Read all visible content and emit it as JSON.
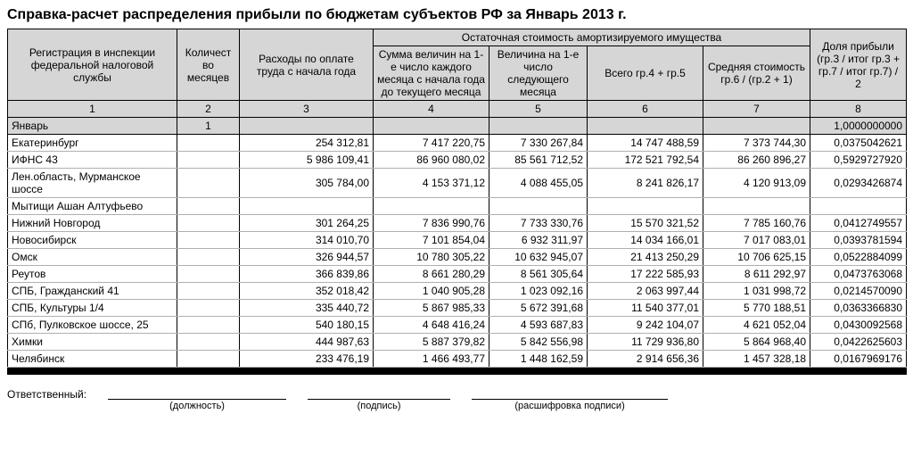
{
  "title": "Справка-расчет распределения прибыли по бюджетам субъектов РФ за Январь 2013 г.",
  "headers": {
    "c1": "Регистрация в инспекции федеральной налоговой службы",
    "c2": "Количест во месяцев",
    "c3": "Расходы по оплате труда с начала года",
    "group": "Остаточная стоимость амортизируемого имущества",
    "c4": "Сумма величин на 1-е число каждого  месяца с начала года до текущего месяца",
    "c5": "Величина на 1-е число следующего месяца",
    "c6": "Всего гр.4 + гр.5",
    "c7": "Средняя стоимость гр.6 / (гр.2 + 1)",
    "c8": "Доля прибыли (гр.3 / итог гр.3 + гр.7 / итог гр.7) / 2"
  },
  "colnums": [
    "1",
    "2",
    "3",
    "4",
    "5",
    "6",
    "7",
    "8"
  ],
  "month": {
    "label": "Январь",
    "count": "1",
    "share": "1,0000000000"
  },
  "rows": [
    {
      "c1": "Екатеринбург",
      "c3": "254 312,81",
      "c4": "7 417 220,75",
      "c5": "7 330 267,84",
      "c6": "14 747 488,59",
      "c7": "7 373 744,30",
      "c8": "0,0375042621"
    },
    {
      "c1": "ИФНС 43",
      "c3": "5 986 109,41",
      "c4": "86 960 080,02",
      "c5": "85 561 712,52",
      "c6": "172 521 792,54",
      "c7": "86 260 896,27",
      "c8": "0,5929727920"
    },
    {
      "c1": "Лен.область, Мурманское шоссе",
      "c3": "305 784,00",
      "c4": "4 153 371,12",
      "c5": "4 088 455,05",
      "c6": "8 241 826,17",
      "c7": "4 120 913,09",
      "c8": "0,0293426874"
    },
    {
      "c1": "Мытищи Ашан Алтуфьево",
      "c3": "",
      "c4": "",
      "c5": "",
      "c6": "",
      "c7": "",
      "c8": ""
    },
    {
      "c1": "Нижний Новгород",
      "c3": "301 264,25",
      "c4": "7 836 990,76",
      "c5": "7 733 330,76",
      "c6": "15 570 321,52",
      "c7": "7 785 160,76",
      "c8": "0,0412749557"
    },
    {
      "c1": "Новосибирск",
      "c3": "314 010,70",
      "c4": "7 101 854,04",
      "c5": "6 932 311,97",
      "c6": "14 034 166,01",
      "c7": "7 017 083,01",
      "c8": "0,0393781594"
    },
    {
      "c1": "Омск",
      "c3": "326 944,57",
      "c4": "10 780 305,22",
      "c5": "10 632 945,07",
      "c6": "21 413 250,29",
      "c7": "10 706 625,15",
      "c8": "0,0522884099"
    },
    {
      "c1": "Реутов",
      "c3": "366 839,86",
      "c4": "8 661 280,29",
      "c5": "8 561 305,64",
      "c6": "17 222 585,93",
      "c7": "8 611 292,97",
      "c8": "0,0473763068"
    },
    {
      "c1": "СПБ, Гражданский 41",
      "c3": "352 018,42",
      "c4": "1 040 905,28",
      "c5": "1 023 092,16",
      "c6": "2 063 997,44",
      "c7": "1 031 998,72",
      "c8": "0,0214570090"
    },
    {
      "c1": "СПБ, Культуры 1/4",
      "c3": "335 440,72",
      "c4": "5 867 985,33",
      "c5": "5 672 391,68",
      "c6": "11 540 377,01",
      "c7": "5 770 188,51",
      "c8": "0,0363366830"
    },
    {
      "c1": "СПб, Пулковское шоссе, 25",
      "c3": "540 180,15",
      "c4": "4 648 416,24",
      "c5": "4 593 687,83",
      "c6": "9 242 104,07",
      "c7": "4 621 052,04",
      "c8": "0,0430092568"
    },
    {
      "c1": "Химки",
      "c3": "444 987,63",
      "c4": "5 887 379,82",
      "c5": "5 842 556,98",
      "c6": "11 729 936,80",
      "c7": "5 864 968,40",
      "c8": "0,0422625603"
    },
    {
      "c1": "Челябинск",
      "c3": "233 476,19",
      "c4": "1 466 493,77",
      "c5": "1 448 162,59",
      "c6": "2 914 656,36",
      "c7": "1 457 328,18",
      "c8": "0,0167969176"
    }
  ],
  "signature": {
    "label": "Ответственный:",
    "f1": "(должность)",
    "f2": "(подпись)",
    "f3": "(расшифровка подписи)"
  },
  "colwidths": {
    "c1": "190px",
    "c2": "70px",
    "c3": "150px",
    "c4": "130px",
    "c5": "110px",
    "c6": "130px",
    "c7": "120px",
    "c8": "108px"
  }
}
